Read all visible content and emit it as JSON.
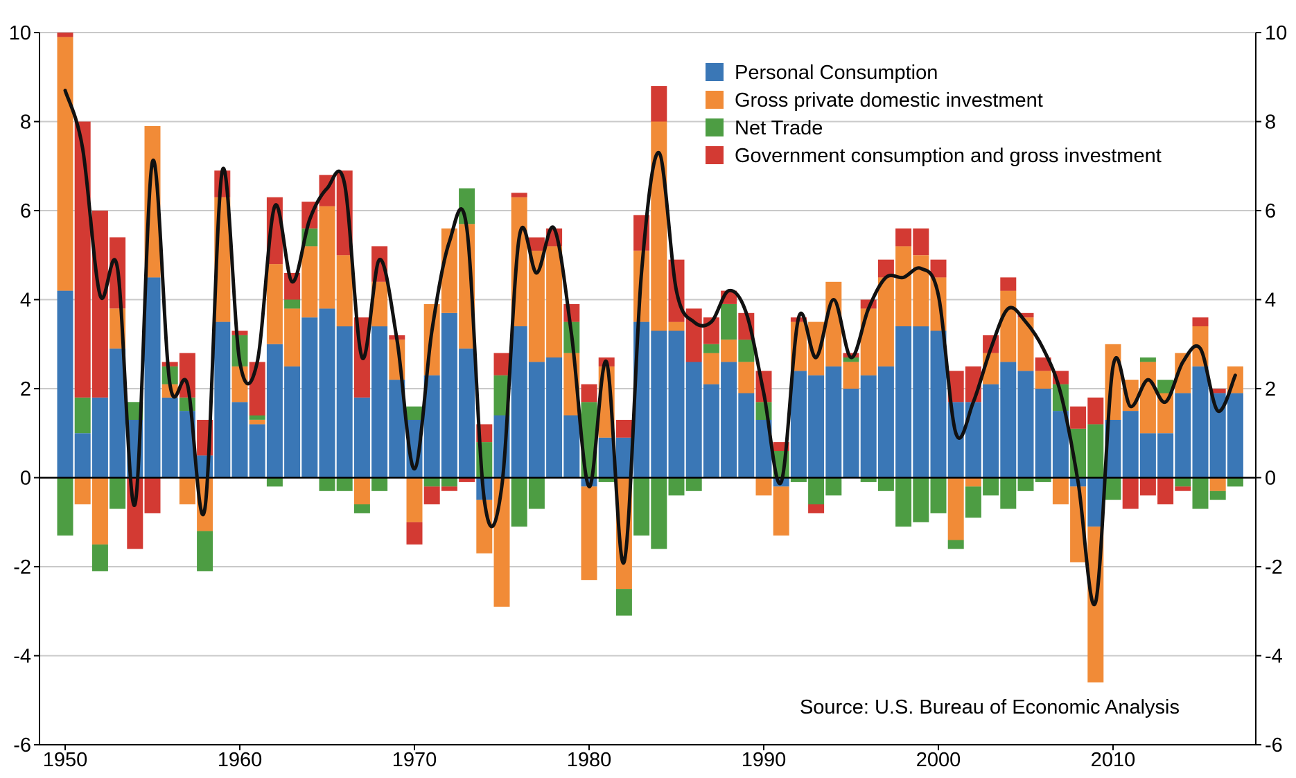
{
  "chart_data": {
    "type": "bar",
    "stacked": true,
    "title": "",
    "xlabel": "",
    "ylabel": "",
    "ylim": [
      -6,
      10
    ],
    "y_ticks": [
      -6,
      -4,
      -2,
      0,
      2,
      4,
      6,
      8,
      10
    ],
    "y_tick_labels": [
      "-6",
      "-4",
      "-2",
      "0",
      "2",
      "4",
      "6",
      "8",
      "10"
    ],
    "x_tick_years": [
      1950,
      1960,
      1970,
      1980,
      1990,
      2000,
      2010
    ],
    "x_tick_labels": [
      "1950",
      "1960",
      "1970",
      "1980",
      "1990",
      "2000",
      "2010"
    ],
    "grid": true,
    "secondary_y_axis": true,
    "legend_position": "top-right",
    "colors": {
      "personal_consumption": "#3a77b6",
      "investment": "#f18b37",
      "net_trade": "#4d9d43",
      "government": "#d33a33",
      "total_line": "#111111"
    },
    "years": [
      1950,
      1951,
      1952,
      1953,
      1954,
      1955,
      1956,
      1957,
      1958,
      1959,
      1960,
      1961,
      1962,
      1963,
      1964,
      1965,
      1966,
      1967,
      1968,
      1969,
      1970,
      1971,
      1972,
      1973,
      1974,
      1975,
      1976,
      1977,
      1978,
      1979,
      1980,
      1981,
      1982,
      1983,
      1984,
      1985,
      1986,
      1987,
      1988,
      1989,
      1990,
      1991,
      1992,
      1993,
      1994,
      1995,
      1996,
      1997,
      1998,
      1999,
      2000,
      2001,
      2002,
      2003,
      2004,
      2005,
      2006,
      2007,
      2008,
      2009,
      2010,
      2011,
      2012,
      2013,
      2014,
      2015,
      2016,
      2017
    ],
    "series": [
      {
        "name": "Personal Consumption",
        "key": "personal_consumption",
        "values": [
          4.2,
          1.0,
          1.8,
          2.9,
          1.3,
          4.5,
          1.8,
          1.5,
          0.5,
          3.5,
          1.7,
          1.2,
          3.0,
          2.5,
          3.6,
          3.8,
          3.4,
          1.8,
          3.4,
          2.2,
          1.3,
          2.3,
          3.7,
          2.9,
          -0.5,
          1.4,
          3.4,
          2.6,
          2.7,
          1.4,
          -0.2,
          0.9,
          0.9,
          3.5,
          3.3,
          3.3,
          2.6,
          2.1,
          2.6,
          1.9,
          1.3,
          -0.2,
          2.4,
          2.3,
          2.5,
          2.0,
          2.3,
          2.5,
          3.4,
          3.4,
          3.3,
          1.7,
          1.7,
          2.1,
          2.6,
          2.4,
          2.0,
          1.5,
          -0.2,
          -1.1,
          1.3,
          1.5,
          1.0,
          1.0,
          1.9,
          2.5,
          1.9,
          1.9
        ]
      },
      {
        "name": "Gross private domestic investment",
        "key": "investment",
        "values": [
          5.7,
          -0.6,
          -1.5,
          0.9,
          0.0,
          3.4,
          0.3,
          -0.6,
          -1.2,
          2.8,
          0.8,
          0.1,
          1.8,
          1.3,
          1.6,
          2.3,
          1.6,
          -0.6,
          1.0,
          0.9,
          -1.0,
          1.6,
          1.9,
          2.8,
          -1.2,
          -2.9,
          2.9,
          2.5,
          2.5,
          1.4,
          -2.1,
          1.6,
          -2.5,
          1.6,
          4.7,
          0.2,
          0.0,
          0.7,
          0.5,
          0.7,
          -0.4,
          -1.1,
          1.1,
          1.2,
          1.9,
          0.6,
          1.5,
          2.0,
          1.8,
          1.6,
          1.2,
          -1.4,
          -0.2,
          0.7,
          1.6,
          1.2,
          0.4,
          -0.6,
          -1.7,
          -3.5,
          1.7,
          0.7,
          1.6,
          0.9,
          0.9,
          0.9,
          -0.3,
          0.6
        ]
      },
      {
        "name": "Net Trade",
        "key": "net_trade",
        "values": [
          -1.3,
          0.8,
          -0.6,
          -0.7,
          0.4,
          0.0,
          0.4,
          0.3,
          -0.9,
          0.0,
          0.7,
          0.1,
          -0.2,
          0.2,
          0.4,
          -0.3,
          -0.3,
          -0.2,
          -0.3,
          0.0,
          0.3,
          -0.2,
          -0.2,
          0.8,
          0.8,
          0.9,
          -1.1,
          -0.7,
          0.0,
          0.7,
          1.7,
          -0.1,
          -0.6,
          -1.3,
          -1.6,
          -0.4,
          -0.3,
          0.2,
          0.8,
          0.5,
          0.4,
          0.6,
          -0.1,
          -0.6,
          -0.4,
          0.1,
          -0.1,
          -0.3,
          -1.1,
          -1.0,
          -0.8,
          -0.2,
          -0.7,
          -0.4,
          -0.7,
          -0.3,
          -0.1,
          0.6,
          1.1,
          1.2,
          -0.5,
          0.0,
          0.1,
          0.3,
          -0.2,
          -0.7,
          -0.2,
          -0.2
        ]
      },
      {
        "name": "Government consumption and gross investment",
        "key": "government",
        "values": [
          0.1,
          6.2,
          4.2,
          1.6,
          -1.6,
          -0.8,
          0.1,
          1.0,
          0.8,
          0.6,
          0.1,
          1.2,
          1.5,
          0.6,
          0.6,
          0.7,
          1.9,
          1.8,
          0.8,
          0.1,
          -0.5,
          -0.4,
          -0.1,
          -0.1,
          0.4,
          0.5,
          0.1,
          0.3,
          0.4,
          0.4,
          0.4,
          0.2,
          0.4,
          0.8,
          0.8,
          1.4,
          1.2,
          0.6,
          0.3,
          0.6,
          0.7,
          0.2,
          0.1,
          -0.2,
          0.0,
          0.1,
          0.2,
          0.4,
          0.4,
          0.6,
          0.4,
          0.7,
          0.8,
          0.4,
          0.3,
          0.1,
          0.3,
          0.3,
          0.5,
          0.6,
          0.0,
          -0.7,
          -0.4,
          -0.6,
          -0.1,
          0.2,
          0.1,
          0.0
        ]
      }
    ],
    "line_values": [
      8.7,
      7.4,
      4.1,
      4.7,
      -0.6,
      7.1,
      2.1,
      2.1,
      -0.7,
      6.9,
      2.6,
      2.6,
      6.1,
      4.4,
      5.8,
      6.5,
      6.6,
      2.7,
      4.9,
      3.1,
      0.2,
      3.3,
      5.3,
      5.6,
      -0.5,
      -0.2,
      5.4,
      4.6,
      5.6,
      3.2,
      -0.2,
      2.6,
      -1.9,
      4.6,
      7.3,
      4.2,
      3.5,
      3.5,
      4.2,
      3.7,
      1.9,
      -0.1,
      3.6,
      2.7,
      4.0,
      2.7,
      3.8,
      4.5,
      4.5,
      4.7,
      4.1,
      1.0,
      1.7,
      2.9,
      3.8,
      3.5,
      2.9,
      1.9,
      -0.1,
      -2.8,
      2.5,
      1.6,
      2.2,
      1.7,
      2.6,
      2.9,
      1.5,
      2.3
    ],
    "legend": [
      {
        "label": "Personal Consumption",
        "color": "#3a77b6"
      },
      {
        "label": "Gross private domestic investment",
        "color": "#f18b37"
      },
      {
        "label": "Net Trade",
        "color": "#4d9d43"
      },
      {
        "label": "Government consumption and gross investment",
        "color": "#d33a33"
      }
    ],
    "annotation": "Source: U.S. Bureau of Economic Analysis"
  }
}
